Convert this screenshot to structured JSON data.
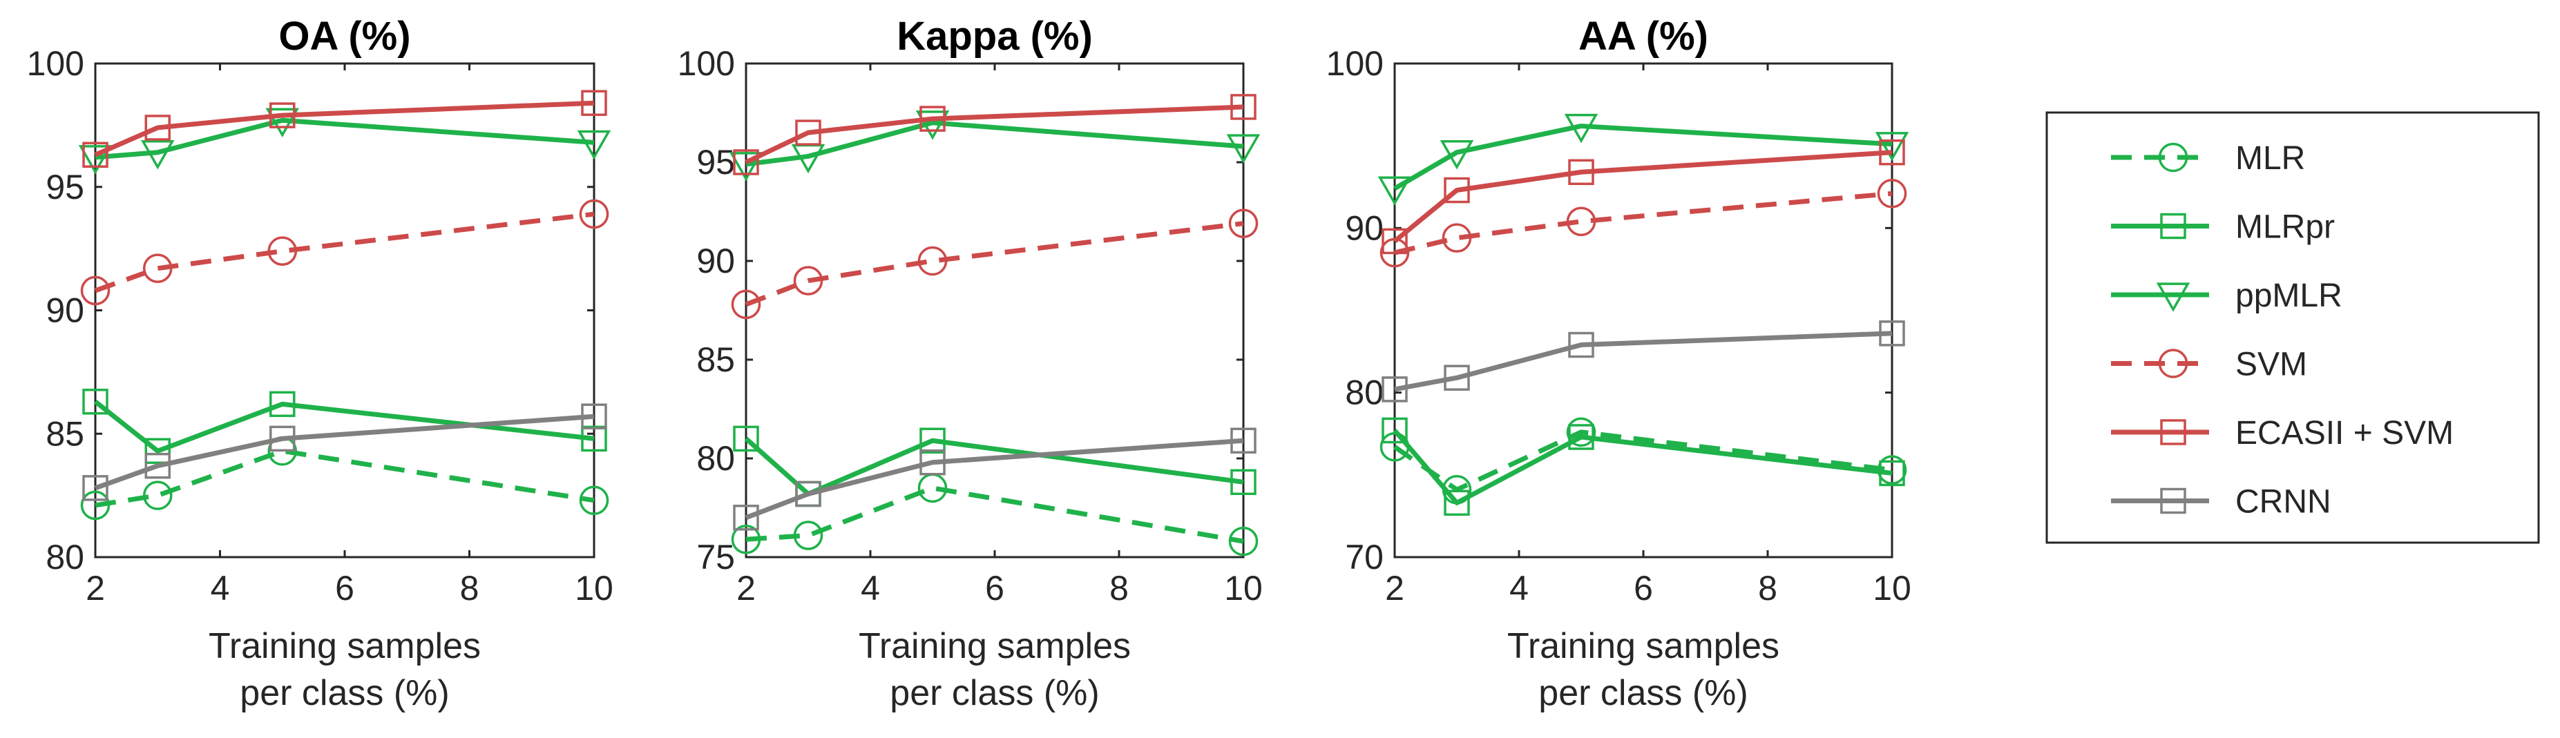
{
  "figure": {
    "legend": [
      "MLR",
      "MLRpr",
      "ppMLR",
      "SVM",
      "ECASII + SVM",
      "CRNN"
    ]
  },
  "series_styles": {
    "MLR": {
      "color": "#1FB24A",
      "dash": "dashed",
      "marker": "circle"
    },
    "MLRpr": {
      "color": "#1FB24A",
      "dash": "solid",
      "marker": "square"
    },
    "ppMLR": {
      "color": "#1FB24A",
      "dash": "solid",
      "marker": "triangle-down"
    },
    "SVM": {
      "color": "#CD4A4A",
      "dash": "dashed",
      "marker": "circle"
    },
    "ECASII + SVM": {
      "color": "#CD4A4A",
      "dash": "solid",
      "marker": "square"
    },
    "CRNN": {
      "color": "#808080",
      "dash": "solid",
      "marker": "square"
    }
  },
  "chart_data": [
    {
      "type": "line",
      "title": "OA (%)",
      "xlabel": "Training samples\nper class (%)",
      "ylabel": "",
      "x": [
        2,
        3,
        5,
        10
      ],
      "xlim": [
        2,
        10
      ],
      "ylim": [
        80,
        100
      ],
      "xticks": [
        2,
        4,
        6,
        8,
        10
      ],
      "yticks": [
        80,
        85,
        90,
        95,
        100
      ],
      "grid": false,
      "series": [
        {
          "name": "MLR",
          "values": [
            82.1,
            82.5,
            84.3,
            82.3
          ]
        },
        {
          "name": "MLRpr",
          "values": [
            86.3,
            84.3,
            86.2,
            84.8
          ]
        },
        {
          "name": "ppMLR",
          "values": [
            96.2,
            96.4,
            97.7,
            96.8
          ]
        },
        {
          "name": "SVM",
          "values": [
            90.8,
            91.7,
            92.4,
            93.9
          ]
        },
        {
          "name": "ECASII + SVM",
          "values": [
            96.3,
            97.4,
            97.9,
            98.4
          ]
        },
        {
          "name": "CRNN",
          "values": [
            82.8,
            83.7,
            84.8,
            85.7
          ]
        }
      ]
    },
    {
      "type": "line",
      "title": "Kappa (%)",
      "xlabel": "Training samples\nper class (%)",
      "ylabel": "",
      "x": [
        2,
        3,
        5,
        10
      ],
      "xlim": [
        2,
        10
      ],
      "ylim": [
        75,
        100
      ],
      "xticks": [
        2,
        4,
        6,
        8,
        10
      ],
      "yticks": [
        75,
        80,
        85,
        90,
        95,
        100
      ],
      "grid": false,
      "series": [
        {
          "name": "MLR",
          "values": [
            75.9,
            76.1,
            78.5,
            75.8
          ]
        },
        {
          "name": "MLRpr",
          "values": [
            81.0,
            78.2,
            80.9,
            78.8
          ]
        },
        {
          "name": "ppMLR",
          "values": [
            94.9,
            95.3,
            97.0,
            95.8
          ]
        },
        {
          "name": "SVM",
          "values": [
            87.8,
            89.0,
            90.0,
            91.9
          ]
        },
        {
          "name": "ECASII + SVM",
          "values": [
            95.0,
            96.5,
            97.2,
            97.8
          ]
        },
        {
          "name": "CRNN",
          "values": [
            77.0,
            78.2,
            79.8,
            80.9
          ]
        }
      ]
    },
    {
      "type": "line",
      "title": "AA (%)",
      "xlabel": "Training samples\nper class (%)",
      "ylabel": "",
      "x": [
        2,
        3,
        5,
        10
      ],
      "xlim": [
        2,
        10
      ],
      "ylim": [
        70,
        100
      ],
      "xticks": [
        2,
        4,
        6,
        8,
        10
      ],
      "yticks": [
        70,
        80,
        90,
        100
      ],
      "grid": false,
      "series": [
        {
          "name": "MLR",
          "values": [
            76.7,
            74.1,
            77.6,
            75.3
          ]
        },
        {
          "name": "MLRpr",
          "values": [
            77.7,
            73.3,
            77.3,
            75.1
          ]
        },
        {
          "name": "ppMLR",
          "values": [
            92.4,
            94.6,
            96.2,
            95.1
          ]
        },
        {
          "name": "SVM",
          "values": [
            88.5,
            89.4,
            90.4,
            92.1
          ]
        },
        {
          "name": "ECASII + SVM",
          "values": [
            89.2,
            92.3,
            93.4,
            94.6
          ]
        },
        {
          "name": "CRNN",
          "values": [
            80.2,
            80.9,
            82.9,
            83.6
          ]
        }
      ]
    }
  ]
}
